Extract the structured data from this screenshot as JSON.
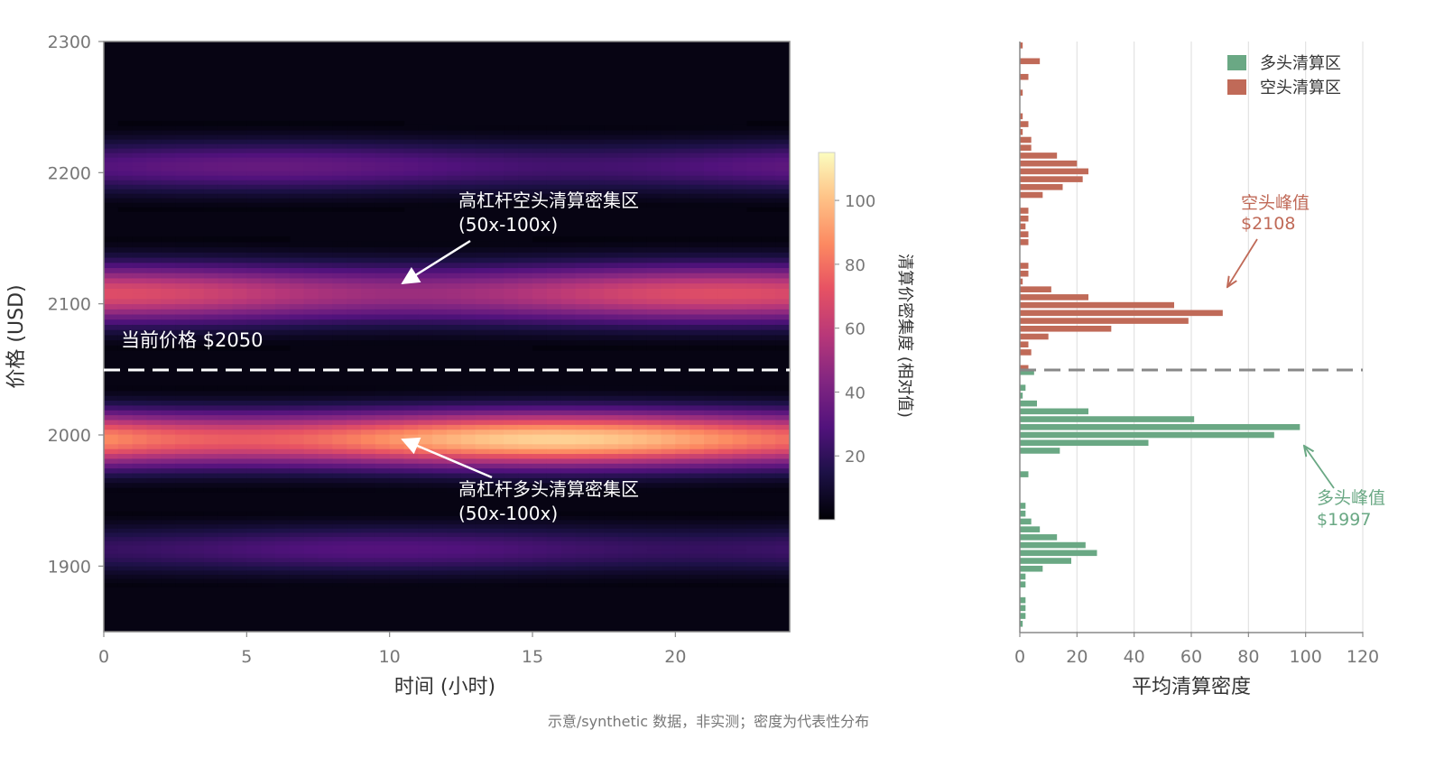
{
  "colors": {
    "long": "#6aa884",
    "short": "#c06a58",
    "axis": "#777777",
    "tick_text": "#777777",
    "dark_text": "#333333",
    "annot_white": "#ffffff",
    "heatmap_bg": "#0b0420",
    "grid": "#dddddd"
  },
  "heatmap": {
    "xlabel": "时间 (小时)",
    "ylabel": "价格 (USD)",
    "xlim": [
      0,
      24
    ],
    "ylim": [
      1850,
      2300
    ],
    "xticks": [
      "0",
      "5",
      "10",
      "15",
      "20"
    ],
    "yticks": [
      "1900",
      "2000",
      "2100",
      "2200"
    ],
    "ytick_top": "2300",
    "current_price_label": "当前价格 $2050",
    "current_price": 2050,
    "annotation_short_line1": "高杠杆空头清算密集区",
    "annotation_short_line2": "(50x-100x)",
    "annotation_long_line1": "高杠杆多头清算密集区",
    "annotation_long_line2": "(50x-100x)",
    "colorbar_label": "清算价密集度 (相对值)",
    "colorbar_ticks": [
      "20",
      "40",
      "60",
      "80",
      "100"
    ],
    "colorbar_range": [
      0,
      115
    ],
    "colormap": "magma"
  },
  "chart_data": [
    {
      "type": "heatmap",
      "title": "",
      "xlabel": "时间 (小时)",
      "ylabel": "价格 (USD)",
      "xlim": [
        0,
        24
      ],
      "ylim": [
        1850,
        2300
      ],
      "bands": [
        {
          "center_price": 2205,
          "peak_intensity": 35
        },
        {
          "center_price": 2108,
          "peak_intensity": 70
        },
        {
          "center_price": 1997,
          "peak_intensity": 105
        },
        {
          "center_price": 1913,
          "peak_intensity": 30
        }
      ],
      "reference_line": {
        "price": 2050,
        "label": "当前价格 $2050"
      }
    },
    {
      "type": "bar",
      "orientation": "horizontal",
      "xlabel": "平均清算密度",
      "xlim": [
        0,
        120
      ],
      "ylim": [
        1850,
        2300
      ],
      "xticks": [
        "0",
        "20",
        "40",
        "60",
        "80",
        "100",
        "120"
      ],
      "legend": {
        "placement": "top-right",
        "entries": [
          "多头清算区",
          "空头清算区"
        ]
      },
      "series": [
        {
          "name": "空头清算区",
          "prices": [
            2297,
            2291,
            2285,
            2279,
            2273,
            2267,
            2261,
            2255,
            2249,
            2243,
            2237,
            2231,
            2225,
            2219,
            2213,
            2207,
            2201,
            2195,
            2189,
            2183,
            2177,
            2171,
            2165,
            2159,
            2153,
            2147,
            2141,
            2135,
            2129,
            2123,
            2117,
            2111,
            2105,
            2099,
            2093,
            2087,
            2081,
            2075,
            2069,
            2063,
            2057,
            2051
          ],
          "values": [
            1,
            0,
            7,
            0,
            3,
            0,
            1,
            0,
            0,
            1,
            3,
            1,
            4,
            4,
            13,
            20,
            24,
            22,
            15,
            8,
            0,
            3,
            3,
            2,
            3,
            3,
            0,
            0,
            3,
            3,
            1,
            11,
            24,
            54,
            71,
            59,
            32,
            10,
            3,
            4,
            0,
            3
          ]
        },
        {
          "name": "多头清算区",
          "prices": [
            2048,
            2042,
            2036,
            2030,
            2024,
            2018,
            2012,
            2006,
            2000,
            1994,
            1988,
            1982,
            1976,
            1970,
            1964,
            1958,
            1952,
            1946,
            1940,
            1934,
            1928,
            1922,
            1916,
            1910,
            1904,
            1898,
            1892,
            1886,
            1880,
            1874,
            1868,
            1862,
            1856
          ],
          "values": [
            5,
            0,
            2,
            1,
            6,
            24,
            61,
            98,
            89,
            45,
            14,
            0,
            0,
            3,
            0,
            0,
            0,
            2,
            2,
            4,
            7,
            13,
            23,
            27,
            18,
            8,
            2,
            2,
            0,
            2,
            2,
            2,
            1
          ]
        }
      ],
      "annotations": [
        {
          "label_line1": "空头峰值",
          "label_line2": "$2108",
          "series": "空头清算区"
        },
        {
          "label_line1": "多头峰值",
          "label_line2": "$1997",
          "series": "多头清算区"
        }
      ],
      "reference_line": {
        "price": 2050
      }
    }
  ],
  "footer": {
    "note": "示意/synthetic 数据，非实测；密度为代表性分布"
  }
}
